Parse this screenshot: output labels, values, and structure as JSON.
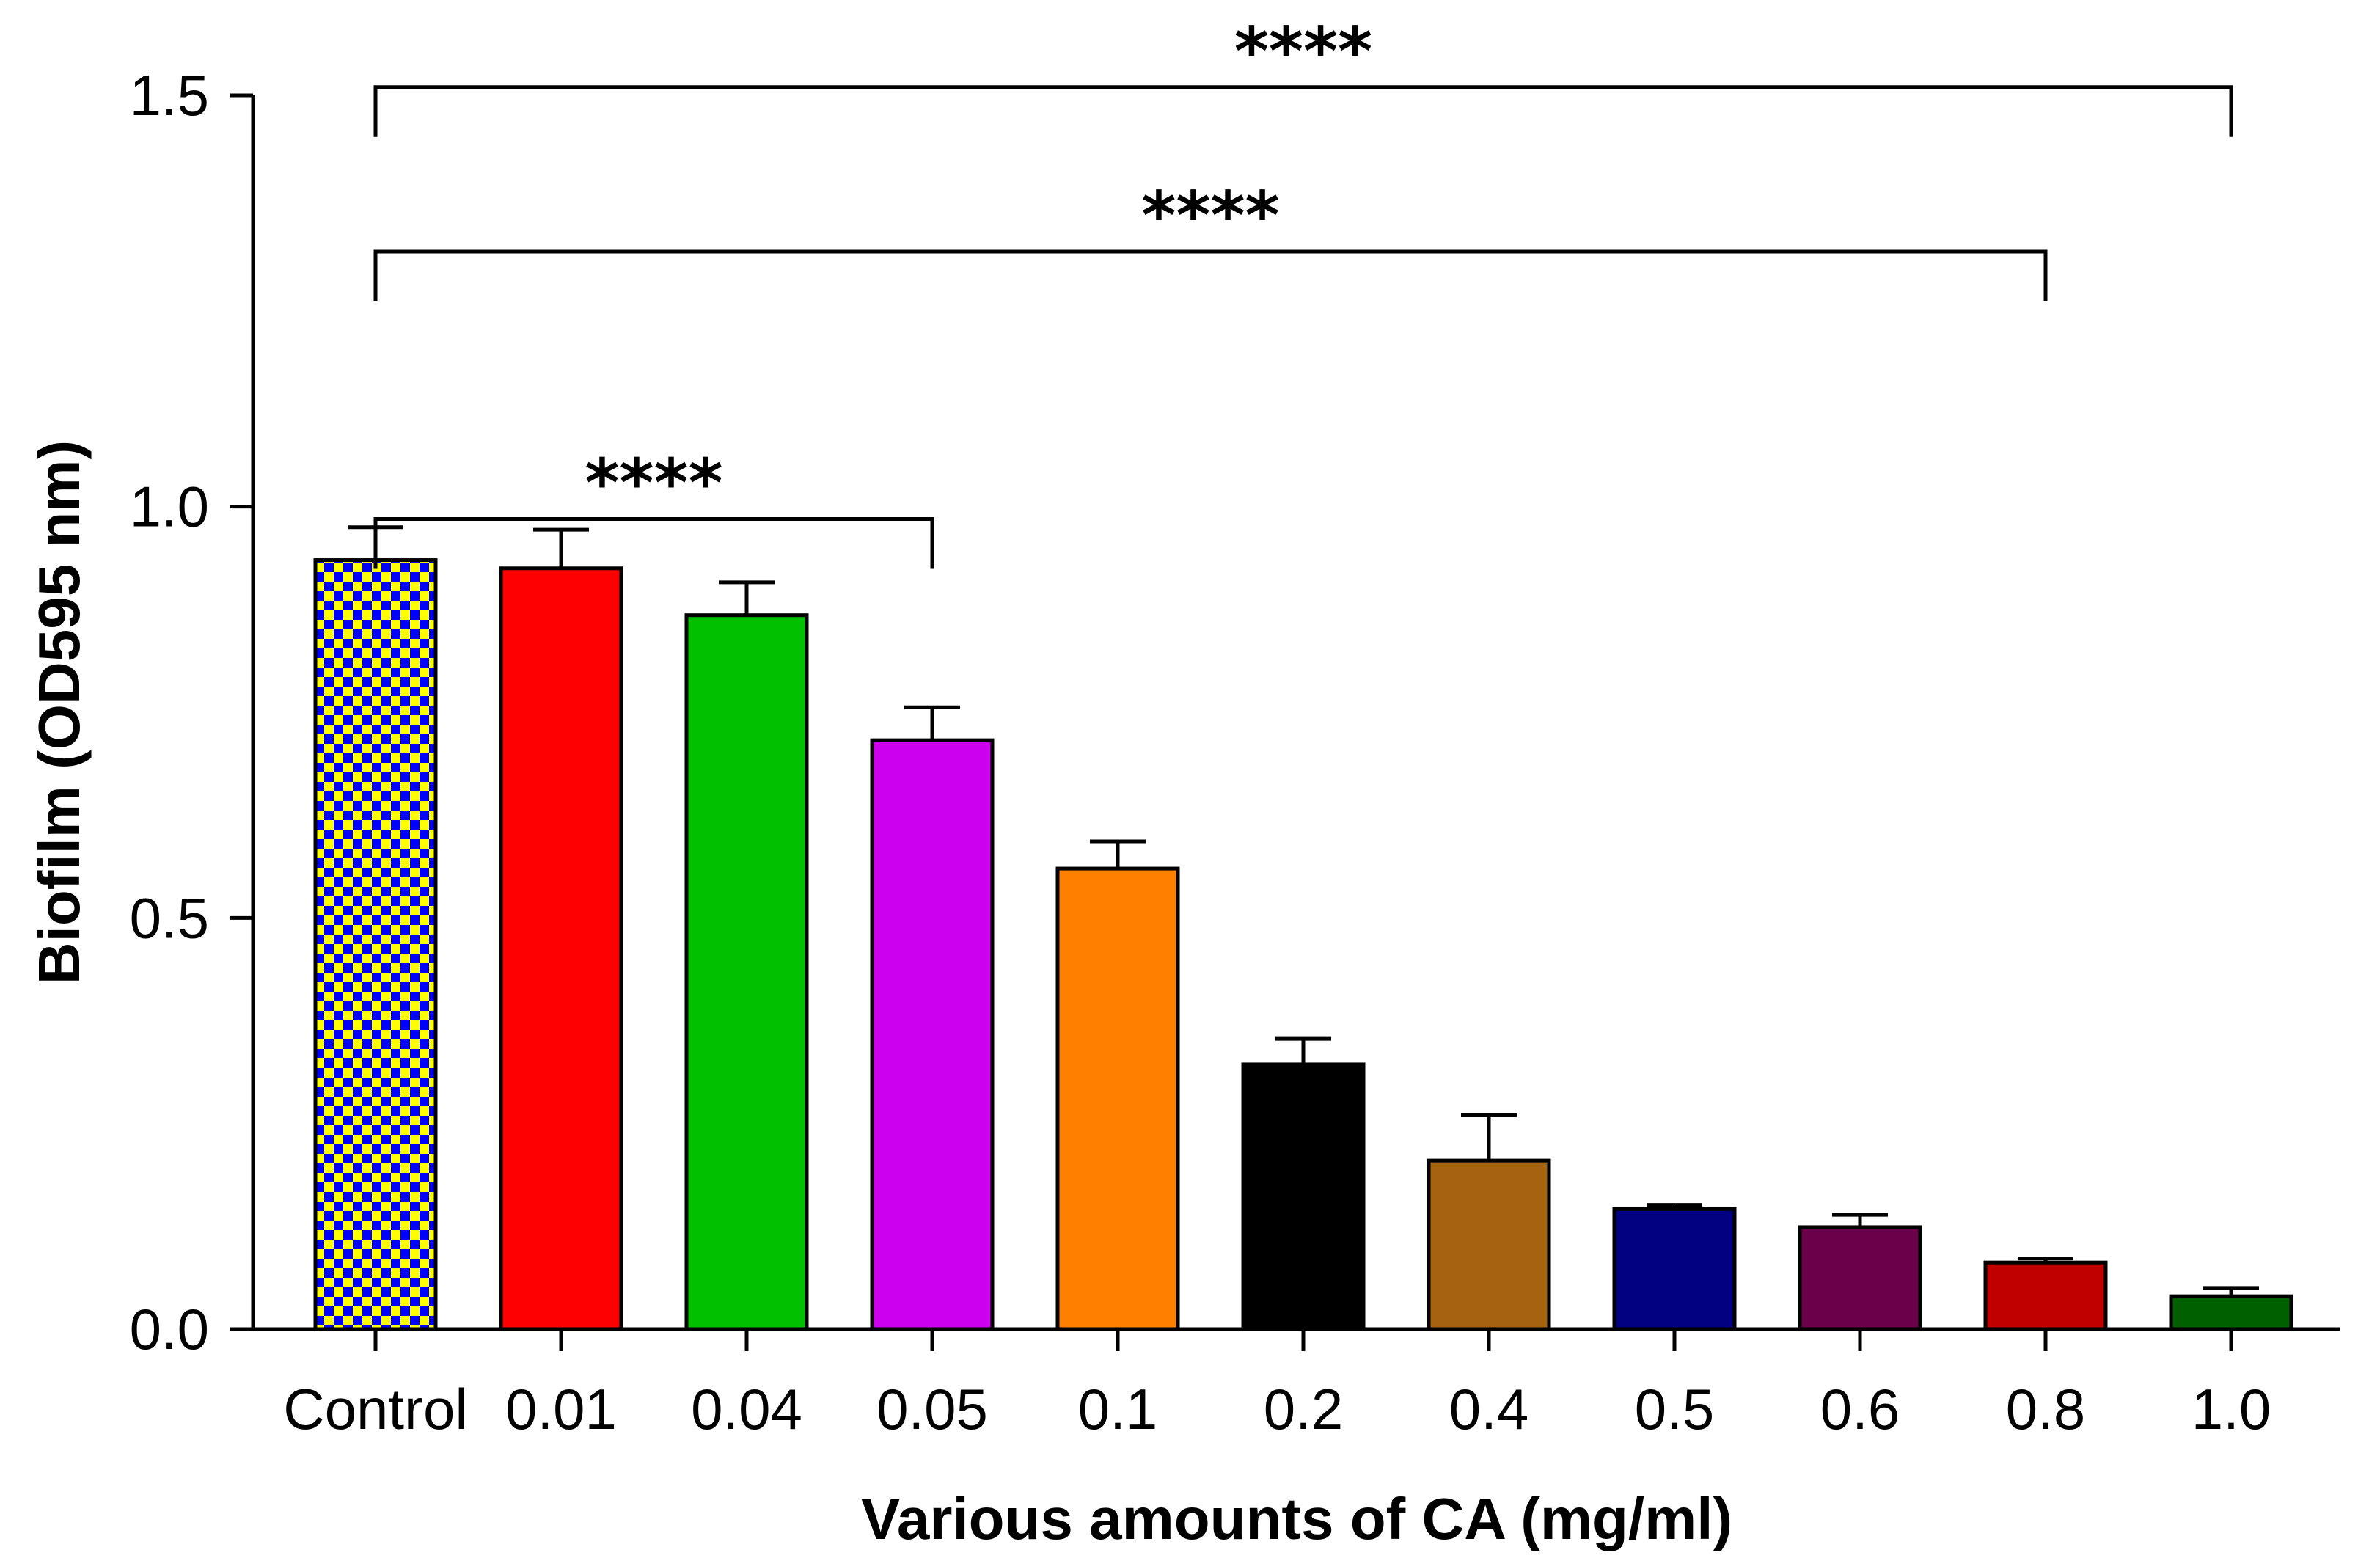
{
  "chart_data": {
    "type": "bar",
    "title": "",
    "xlabel": "Various amounts of CA (mg/ml)",
    "ylabel": "Biofilm (OD595 nm)",
    "ylim": [
      0,
      1.5
    ],
    "yticks": [
      "0.0",
      "0.5",
      "1.0",
      "1.5"
    ],
    "ytick_values": [
      0,
      0.5,
      1.0,
      1.5
    ],
    "categories": [
      "Control",
      "0.01",
      "0.04",
      "0.05",
      "0.1",
      "0.2",
      "0.4",
      "0.5",
      "0.6",
      "0.8",
      "1.0"
    ],
    "values": [
      0.935,
      0.925,
      0.868,
      0.716,
      0.56,
      0.322,
      0.205,
      0.146,
      0.124,
      0.081,
      0.04
    ],
    "errors": [
      0.04,
      0.047,
      0.04,
      0.04,
      0.033,
      0.031,
      0.055,
      0.005,
      0.015,
      0.005,
      0.01
    ],
    "colors": [
      "#ffff00",
      "#ff0000",
      "#00c000",
      "#cc00ee",
      "#ff8000",
      "#000000",
      "#a6620f",
      "#000080",
      "#6a004a",
      "#c00000",
      "#006000"
    ],
    "control_pattern": {
      "color_a": "#ffff00",
      "color_b": "#0000ff"
    },
    "significance": [
      {
        "from": "Control",
        "to": "0.05",
        "label": "****",
        "level": 0.985
      },
      {
        "from": "Control",
        "to": "0.8",
        "label": "****",
        "level": 1.31
      },
      {
        "from": "Control",
        "to": "1.0",
        "label": "****",
        "level": 1.51
      }
    ]
  }
}
